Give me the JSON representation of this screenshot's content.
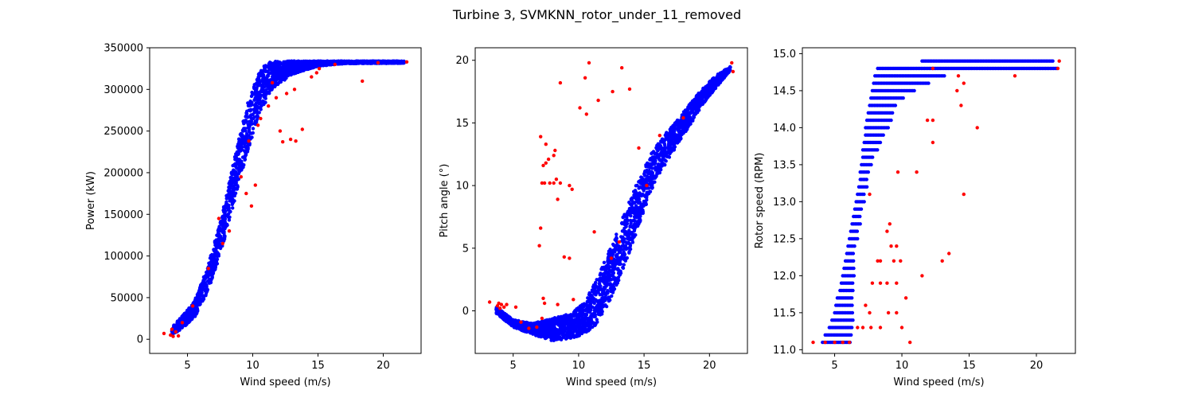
{
  "figure": {
    "suptitle": "Turbine 3, SVMKNN_rotor_under_11_removed"
  },
  "colors": {
    "inlier": "#0000ff",
    "outlier": "#ff0000"
  },
  "chart_data": [
    {
      "type": "scatter",
      "xlabel": "Wind speed (m/s)",
      "ylabel": "Power (kW)",
      "xlim": [
        2.1,
        22.9
      ],
      "ylim": [
        -17000,
        350000
      ],
      "xticks": [
        5,
        10,
        15,
        20
      ],
      "yticks": [
        0,
        50000,
        100000,
        150000,
        200000,
        250000,
        300000,
        350000
      ],
      "grid": false,
      "series": [
        {
          "color": "#0000ff",
          "band_upper": [
            [
              3.8,
              15000
            ],
            [
              4.5,
              26000
            ],
            [
              5.5,
              45000
            ],
            [
              6.5,
              85000
            ],
            [
              7.5,
              140000
            ],
            [
              8.5,
              210000
            ],
            [
              9.5,
              280000
            ],
            [
              10.5,
              322000
            ],
            [
              11.2,
              333000
            ],
            [
              12,
              334000
            ],
            [
              21.6,
              334000
            ]
          ],
          "band_lower": [
            [
              3.8,
              5000
            ],
            [
              4.5,
              12000
            ],
            [
              5.5,
              25000
            ],
            [
              6.5,
              55000
            ],
            [
              7.5,
              100000
            ],
            [
              8.5,
              160000
            ],
            [
              9.5,
              220000
            ],
            [
              10.5,
              270000
            ],
            [
              11.5,
              300000
            ],
            [
              13,
              318000
            ],
            [
              15,
              328000
            ],
            [
              17,
              331000
            ],
            [
              21.6,
              331500
            ]
          ]
        },
        {
          "color": "#ff0000",
          "points": [
            [
              3.2,
              7000
            ],
            [
              3.7,
              5000
            ],
            [
              3.9,
              3500
            ],
            [
              4.1,
              9000
            ],
            [
              4.3,
              4000
            ],
            [
              3.8,
              12000
            ],
            [
              4.6,
              20000
            ],
            [
              5.4,
              40000
            ],
            [
              6.6,
              85000
            ],
            [
              7.4,
              145000
            ],
            [
              9.1,
              195000
            ],
            [
              9.5,
              175000
            ],
            [
              9.9,
              160000
            ],
            [
              9.7,
              238000
            ],
            [
              10.2,
              185000
            ],
            [
              10.6,
              265000
            ],
            [
              11.2,
              280000
            ],
            [
              11.5,
              308000
            ],
            [
              12.1,
              250000
            ],
            [
              12.3,
              237000
            ],
            [
              12.9,
              240000
            ],
            [
              13.3,
              238000
            ],
            [
              13.8,
              252000
            ],
            [
              13.2,
              300000
            ],
            [
              14.5,
              315000
            ],
            [
              14.9,
              320000
            ],
            [
              15.1,
              325000
            ],
            [
              16.3,
              330000
            ],
            [
              18.4,
              310000
            ],
            [
              19.6,
              332000
            ],
            [
              21.8,
              333000
            ],
            [
              11.8,
              290000
            ],
            [
              12.6,
              295000
            ],
            [
              10.4,
              257000
            ],
            [
              8.2,
              130000
            ],
            [
              7.7,
              115000
            ]
          ]
        }
      ]
    },
    {
      "type": "scatter",
      "xlabel": "Wind speed (m/s)",
      "ylabel": "Pitch angle (°)",
      "xlim": [
        2.1,
        22.9
      ],
      "ylim": [
        -3.4,
        21.0
      ],
      "xticks": [
        5,
        10,
        15,
        20
      ],
      "yticks": [
        0,
        5,
        10,
        15,
        20
      ],
      "grid": false,
      "series": [
        {
          "color": "#0000ff",
          "band_upper": [
            [
              3.7,
              0.3
            ],
            [
              5,
              -0.7
            ],
            [
              6.5,
              -1.0
            ],
            [
              8,
              -0.6
            ],
            [
              9.5,
              -0.2
            ],
            [
              10.5,
              0.8
            ],
            [
              11.5,
              2.8
            ],
            [
              12.5,
              5.2
            ],
            [
              13.5,
              7.8
            ],
            [
              14.5,
              10.3
            ],
            [
              15.5,
              12.5
            ],
            [
              16.5,
              14.0
            ],
            [
              17.5,
              15.2
            ],
            [
              18.5,
              16.5
            ],
            [
              19.5,
              17.8
            ],
            [
              20.5,
              18.8
            ],
            [
              21.6,
              19.5
            ]
          ],
          "band_lower": [
            [
              3.7,
              -0.2
            ],
            [
              5,
              -1.3
            ],
            [
              6.5,
              -1.9
            ],
            [
              8,
              -2.4
            ],
            [
              9.5,
              -2.2
            ],
            [
              10.5,
              -1.8
            ],
            [
              11.5,
              -1.0
            ],
            [
              12.5,
              1.0
            ],
            [
              13.5,
              3.5
            ],
            [
              14.5,
              6.5
            ],
            [
              15.5,
              9.5
            ],
            [
              16.5,
              11.5
            ],
            [
              17.5,
              13.2
            ],
            [
              18.5,
              14.8
            ],
            [
              19.5,
              16.5
            ],
            [
              20.5,
              17.8
            ],
            [
              21.6,
              19.2
            ]
          ]
        },
        {
          "color": "#ff0000",
          "points": [
            [
              3.2,
              0.7
            ],
            [
              3.8,
              0.4
            ],
            [
              3.9,
              0.6
            ],
            [
              4.0,
              0.2
            ],
            [
              4.1,
              0.5
            ],
            [
              4.3,
              0.3
            ],
            [
              4.5,
              0.5
            ],
            [
              5.2,
              0.3
            ],
            [
              5.6,
              -0.9
            ],
            [
              6.2,
              -1.4
            ],
            [
              6.8,
              -1.3
            ],
            [
              7.2,
              -0.6
            ],
            [
              7.3,
              1.0
            ],
            [
              7.4,
              0.6
            ],
            [
              8.4,
              0.5
            ],
            [
              9.6,
              0.9
            ],
            [
              7.1,
              13.9
            ],
            [
              7.5,
              13.3
            ],
            [
              7.3,
              11.6
            ],
            [
              7.5,
              11.8
            ],
            [
              7.7,
              12.1
            ],
            [
              8.1,
              12.4
            ],
            [
              8.2,
              12.8
            ],
            [
              7.2,
              10.2
            ],
            [
              7.4,
              10.2
            ],
            [
              7.8,
              10.2
            ],
            [
              8.1,
              10.2
            ],
            [
              8.3,
              10.5
            ],
            [
              8.6,
              10.2
            ],
            [
              8.4,
              8.9
            ],
            [
              8.6,
              18.2
            ],
            [
              8.9,
              4.3
            ],
            [
              9.3,
              4.2
            ],
            [
              9.5,
              9.7
            ],
            [
              9.3,
              10.0
            ],
            [
              10.1,
              16.2
            ],
            [
              10.5,
              18.6
            ],
            [
              10.6,
              15.7
            ],
            [
              10.8,
              19.8
            ],
            [
              11.5,
              16.8
            ],
            [
              11.2,
              6.3
            ],
            [
              12.6,
              17.5
            ],
            [
              13.3,
              19.4
            ],
            [
              13.9,
              17.7
            ],
            [
              7.1,
              6.6
            ],
            [
              7.0,
              5.2
            ],
            [
              14.6,
              13.0
            ],
            [
              15.2,
              10.0
            ],
            [
              16.2,
              14.0
            ],
            [
              18.0,
              15.4
            ],
            [
              21.7,
              19.8
            ],
            [
              21.8,
              19.1
            ],
            [
              12.5,
              4.2
            ],
            [
              13.1,
              5.5
            ]
          ]
        }
      ]
    },
    {
      "type": "scatter",
      "xlabel": "Wind speed (m/s)",
      "ylabel": "Rotor speed (RPM)",
      "xlim": [
        2.6,
        22.9
      ],
      "ylim": [
        10.95,
        15.08
      ],
      "xticks": [
        5,
        10,
        15,
        20
      ],
      "yticks": [
        11.0,
        11.5,
        12.0,
        12.5,
        13.0,
        13.5,
        14.0,
        14.5,
        15.0
      ],
      "grid": false,
      "series": [
        {
          "color": "#0000ff",
          "levels": [
            [
              11.1,
              4.1,
              6.2
            ],
            [
              11.2,
              4.3,
              6.3
            ],
            [
              11.3,
              4.6,
              6.4
            ],
            [
              11.4,
              4.8,
              6.4
            ],
            [
              11.5,
              5.0,
              6.4
            ],
            [
              11.6,
              5.1,
              6.4
            ],
            [
              11.7,
              5.2,
              6.4
            ],
            [
              11.8,
              5.4,
              6.4
            ],
            [
              11.9,
              5.5,
              6.4
            ],
            [
              12.0,
              5.6,
              6.5
            ],
            [
              12.1,
              5.7,
              6.5
            ],
            [
              12.2,
              5.8,
              6.5
            ],
            [
              12.3,
              5.9,
              6.5
            ],
            [
              12.4,
              6.0,
              6.6
            ],
            [
              12.5,
              6.1,
              6.7
            ],
            [
              12.6,
              6.2,
              6.8
            ],
            [
              12.7,
              6.3,
              6.9
            ],
            [
              12.8,
              6.4,
              7.0
            ],
            [
              12.9,
              6.5,
              7.1
            ],
            [
              13.0,
              6.6,
              7.2
            ],
            [
              13.1,
              6.7,
              7.3
            ],
            [
              13.2,
              6.8,
              7.4
            ],
            [
              13.3,
              6.9,
              7.5
            ],
            [
              13.4,
              6.9,
              7.6
            ],
            [
              13.5,
              7.0,
              7.8
            ],
            [
              13.6,
              7.1,
              7.9
            ],
            [
              13.7,
              7.1,
              8.2
            ],
            [
              13.8,
              7.2,
              8.4
            ],
            [
              13.9,
              7.3,
              8.7
            ],
            [
              14.0,
              7.3,
              9.0
            ],
            [
              14.1,
              7.4,
              9.2
            ],
            [
              14.2,
              7.5,
              9.4
            ],
            [
              14.3,
              7.6,
              9.6
            ],
            [
              14.4,
              7.7,
              10.2
            ],
            [
              14.5,
              7.8,
              11.0
            ],
            [
              14.6,
              7.9,
              12.0
            ],
            [
              14.7,
              8.0,
              13.2
            ],
            [
              14.8,
              8.2,
              21.6
            ],
            [
              14.9,
              11.5,
              21.3
            ]
          ]
        },
        {
          "color": "#ff0000",
          "points": [
            [
              3.4,
              11.1
            ],
            [
              4.3,
              11.1
            ],
            [
              5.0,
              11.1
            ],
            [
              5.6,
              11.1
            ],
            [
              6.1,
              11.1
            ],
            [
              6.7,
              11.3
            ],
            [
              7.1,
              11.3
            ],
            [
              7.7,
              11.3
            ],
            [
              8.4,
              11.3
            ],
            [
              9.0,
              11.5
            ],
            [
              9.6,
              11.5
            ],
            [
              10.3,
              11.7
            ],
            [
              10.6,
              11.1
            ],
            [
              10.0,
              11.3
            ],
            [
              7.6,
              11.5
            ],
            [
              7.3,
              11.6
            ],
            [
              7.8,
              11.9
            ],
            [
              8.4,
              11.9
            ],
            [
              8.9,
              11.9
            ],
            [
              9.6,
              11.9
            ],
            [
              8.2,
              12.2
            ],
            [
              8.4,
              12.2
            ],
            [
              9.4,
              12.2
            ],
            [
              11.5,
              12.0
            ],
            [
              9.2,
              12.4
            ],
            [
              9.6,
              12.4
            ],
            [
              9.9,
              12.2
            ],
            [
              8.9,
              12.6
            ],
            [
              9.1,
              12.7
            ],
            [
              13.0,
              12.2
            ],
            [
              13.5,
              12.3
            ],
            [
              7.6,
              13.1
            ],
            [
              11.1,
              13.4
            ],
            [
              14.6,
              13.1
            ],
            [
              9.7,
              13.4
            ],
            [
              12.3,
              13.8
            ],
            [
              11.9,
              14.1
            ],
            [
              12.3,
              14.1
            ],
            [
              15.6,
              14.0
            ],
            [
              14.4,
              14.3
            ],
            [
              14.1,
              14.5
            ],
            [
              14.6,
              14.6
            ],
            [
              18.4,
              14.7
            ],
            [
              21.7,
              14.9
            ],
            [
              21.6,
              14.8
            ],
            [
              14.2,
              14.7
            ],
            [
              12.3,
              14.8
            ]
          ]
        }
      ]
    }
  ]
}
